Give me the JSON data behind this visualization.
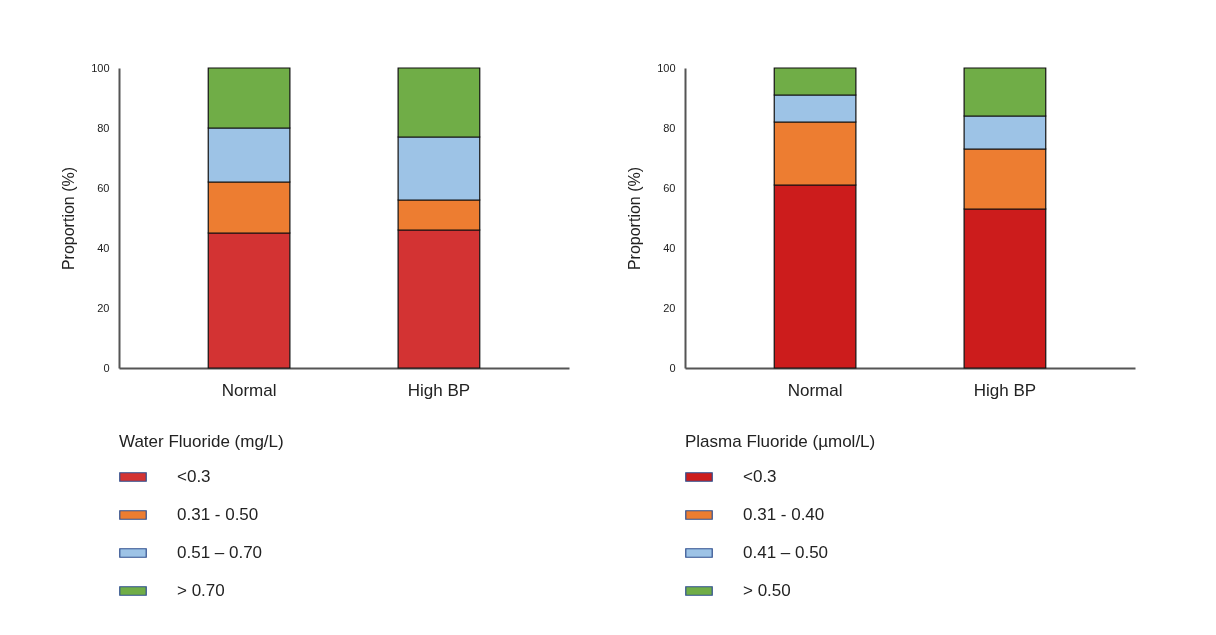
{
  "chart_data": [
    {
      "type": "bar",
      "stacked": true,
      "ylabel": "Proportion (%)",
      "legend_title": "Water Fluoride (mg/L)",
      "legend": "bottom",
      "grid": false,
      "categories": [
        "Normal",
        "High BP"
      ],
      "ylim": [
        0,
        100
      ],
      "yticks": [
        0,
        20,
        40,
        60,
        80,
        100
      ],
      "series": [
        {
          "name": "<0.3",
          "color": "#d33333",
          "values": [
            45,
            46
          ]
        },
        {
          "name": "0.31 - 0.50",
          "color": "#ed7d31",
          "values": [
            17,
            10
          ]
        },
        {
          "name": "0.51 – 0.70",
          "color": "#9dc3e6",
          "values": [
            18,
            21
          ]
        },
        {
          "name": "> 0.70",
          "color": "#70ad47",
          "values": [
            20,
            23
          ]
        }
      ]
    },
    {
      "type": "bar",
      "stacked": true,
      "ylabel": "Proportion (%)",
      "legend_title": "Plasma Fluoride (µmol/L)",
      "legend": "bottom",
      "grid": false,
      "categories": [
        "Normal",
        "High BP"
      ],
      "ylim": [
        0,
        100
      ],
      "yticks": [
        0,
        20,
        40,
        60,
        80,
        100
      ],
      "series": [
        {
          "name": "<0.3",
          "color": "#cc1c1c",
          "values": [
            61,
            53
          ]
        },
        {
          "name": "0.31 - 0.40",
          "color": "#ed7d31",
          "values": [
            21,
            20
          ]
        },
        {
          "name": "0.41 – 0.50",
          "color": "#9dc3e6",
          "values": [
            9,
            11
          ]
        },
        {
          "name": "> 0.50",
          "color": "#70ad47",
          "values": [
            9,
            16
          ]
        }
      ]
    }
  ]
}
